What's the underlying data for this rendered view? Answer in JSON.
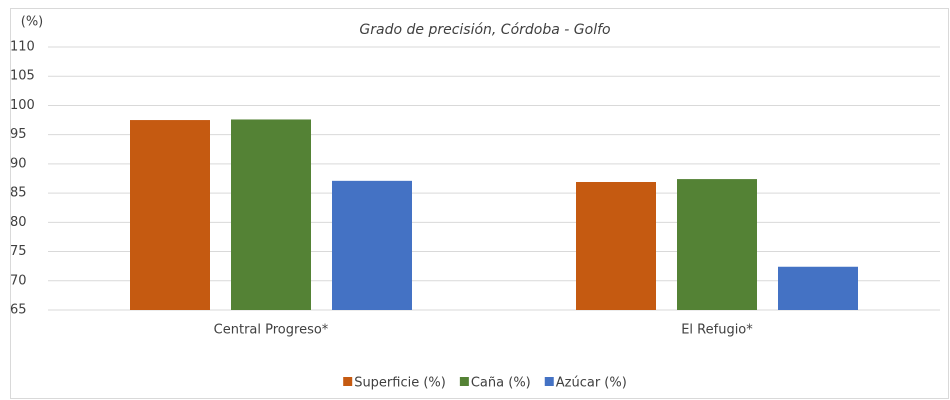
{
  "chart_data": {
    "type": "bar",
    "title": "Grado de precisión, Córdoba - Golfo",
    "y_label": "(%)",
    "categories": [
      "Central Progreso*",
      "El Refugio*"
    ],
    "series": [
      {
        "name": "Superficie (%)",
        "color": "#c55a11",
        "values": [
          97.5,
          86.9
        ]
      },
      {
        "name": "Caña (%)",
        "color": "#548235",
        "values": [
          97.6,
          87.4
        ]
      },
      {
        "name": "Azúcar (%)",
        "color": "#4472c4",
        "values": [
          87.1,
          72.4
        ]
      }
    ],
    "ylim": [
      65,
      110
    ],
    "yticks": [
      65,
      70,
      75,
      80,
      85,
      90,
      95,
      100,
      105,
      110
    ],
    "grid": true,
    "legend": "bottom"
  }
}
